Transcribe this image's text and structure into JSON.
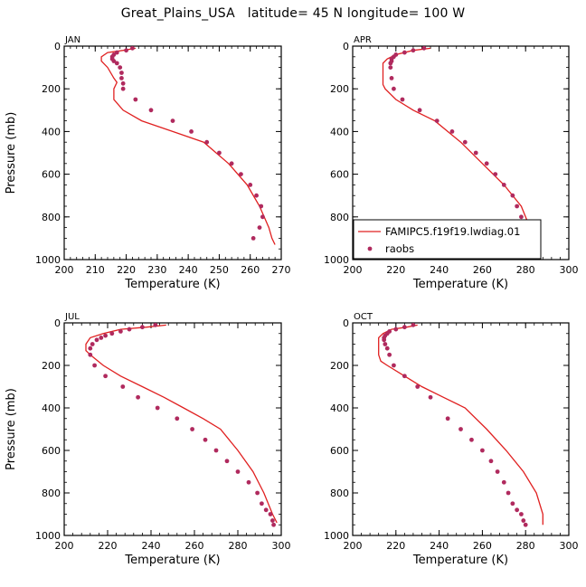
{
  "figure": {
    "title": "Great_Plains_USA   latitude= 45 N longitude= 100 W"
  },
  "colors": {
    "model": "#e02020",
    "obs": "#b02a5e",
    "axis": "#000000"
  },
  "chart_data": [
    {
      "type": "line",
      "panel": "JAN",
      "xlabel": "Temperature (K)",
      "ylabel": "Pressure (mb)",
      "xlim": [
        200,
        270
      ],
      "ylim": [
        1000,
        0
      ],
      "y_inverted": true,
      "xticks": [
        200,
        210,
        220,
        230,
        240,
        250,
        260,
        270
      ],
      "yticks": [
        0,
        200,
        400,
        600,
        800,
        1000
      ],
      "legend": null,
      "series": [
        {
          "name": "FAMIPC5.f19f19.lwdiag.01",
          "kind": "line",
          "x": [
            223,
            219,
            214,
            212,
            212,
            214,
            216,
            217,
            216,
            216,
            219,
            225,
            235,
            245,
            253,
            259,
            263,
            266,
            267,
            268
          ],
          "y": [
            10,
            20,
            30,
            50,
            70,
            100,
            150,
            170,
            200,
            250,
            300,
            350,
            400,
            450,
            550,
            650,
            750,
            850,
            900,
            930
          ]
        },
        {
          "name": "raobs",
          "kind": "points",
          "x": [
            222,
            220,
            217,
            216,
            215.5,
            215.5,
            216,
            217,
            218,
            218.5,
            218.5,
            219,
            219,
            223,
            228,
            235,
            241,
            246,
            250,
            254,
            257,
            260,
            262,
            263.5,
            264,
            263,
            261
          ],
          "y": [
            10,
            20,
            30,
            40,
            50,
            60,
            70,
            80,
            100,
            125,
            150,
            175,
            200,
            250,
            300,
            350,
            400,
            450,
            500,
            550,
            600,
            650,
            700,
            750,
            800,
            850,
            900
          ]
        }
      ]
    },
    {
      "type": "line",
      "panel": "APR",
      "xlabel": "Temperature (K)",
      "ylabel": "",
      "xlim": [
        200,
        300
      ],
      "ylim": [
        1000,
        0
      ],
      "y_inverted": true,
      "xticks": [
        200,
        220,
        240,
        260,
        280,
        300
      ],
      "yticks": [
        0,
        200,
        400,
        600,
        800,
        1000
      ],
      "legend": "bottom-right",
      "series": [
        {
          "name": "FAMIPC5.f19f19.lwdiag.01",
          "kind": "line",
          "x": [
            236,
            228,
            220,
            216,
            214,
            214,
            214,
            214,
            215,
            220,
            228,
            238,
            250,
            260,
            270,
            278,
            282,
            284
          ],
          "y": [
            10,
            20,
            40,
            60,
            80,
            100,
            150,
            180,
            200,
            250,
            300,
            350,
            450,
            550,
            650,
            750,
            850,
            930
          ]
        },
        {
          "name": "raobs",
          "kind": "points",
          "x": [
            233,
            228,
            224,
            220,
            219,
            218,
            218,
            217.5,
            217.5,
            218,
            219,
            223,
            231,
            239,
            246,
            252,
            257,
            262,
            266,
            270,
            274,
            276,
            278,
            279
          ],
          "y": [
            10,
            20,
            30,
            40,
            50,
            60,
            70,
            80,
            100,
            150,
            200,
            250,
            300,
            350,
            400,
            450,
            500,
            550,
            600,
            650,
            700,
            750,
            800,
            850
          ]
        }
      ]
    },
    {
      "type": "line",
      "panel": "JUL",
      "xlabel": "Temperature (K)",
      "ylabel": "Pressure (mb)",
      "xlim": [
        200,
        300
      ],
      "ylim": [
        1000,
        0
      ],
      "y_inverted": true,
      "xticks": [
        200,
        220,
        240,
        260,
        280,
        300
      ],
      "yticks": [
        0,
        200,
        400,
        600,
        800,
        1000
      ],
      "legend": null,
      "series": [
        {
          "name": "FAMIPC5.f19f19.lwdiag.01",
          "kind": "line",
          "x": [
            247,
            238,
            226,
            218,
            212,
            210,
            210,
            212,
            218,
            226,
            236,
            246,
            255,
            264,
            272,
            280,
            287,
            292,
            296,
            298
          ],
          "y": [
            10,
            20,
            30,
            50,
            70,
            100,
            130,
            150,
            200,
            250,
            300,
            350,
            400,
            450,
            500,
            600,
            700,
            800,
            900,
            940
          ]
        },
        {
          "name": "raobs",
          "kind": "points",
          "x": [
            242,
            236,
            230,
            226,
            222,
            219,
            217,
            215,
            213,
            212,
            212,
            214,
            219,
            227,
            234,
            243,
            252,
            259,
            265,
            270,
            275,
            280,
            285,
            289,
            291,
            293,
            295,
            296,
            296.5
          ],
          "y": [
            10,
            20,
            30,
            40,
            50,
            60,
            70,
            80,
            100,
            120,
            150,
            200,
            250,
            300,
            350,
            400,
            450,
            500,
            550,
            600,
            650,
            700,
            750,
            800,
            850,
            880,
            900,
            930,
            950
          ]
        }
      ]
    },
    {
      "type": "line",
      "panel": "OCT",
      "xlabel": "Temperature (K)",
      "ylabel": "",
      "xlim": [
        200,
        300
      ],
      "ylim": [
        1000,
        0
      ],
      "y_inverted": true,
      "xticks": [
        200,
        220,
        240,
        260,
        280,
        300
      ],
      "yticks": [
        0,
        200,
        400,
        600,
        800,
        1000
      ],
      "legend": null,
      "series": [
        {
          "name": "FAMIPC5.f19f19.lwdiag.01",
          "kind": "line",
          "x": [
            230,
            225,
            218,
            214,
            212,
            212,
            212,
            213,
            216,
            224,
            232,
            242,
            252,
            262,
            271,
            279,
            285,
            288,
            288
          ],
          "y": [
            10,
            20,
            30,
            50,
            70,
            100,
            150,
            180,
            200,
            250,
            300,
            350,
            400,
            500,
            600,
            700,
            800,
            900,
            950
          ]
        },
        {
          "name": "raobs",
          "kind": "points",
          "x": [
            228,
            224,
            220,
            217,
            216,
            215,
            214.5,
            214.5,
            215,
            216,
            217,
            219,
            224,
            230,
            236,
            244,
            250,
            255,
            260,
            264,
            267,
            270,
            272,
            274,
            276,
            278,
            279,
            280
          ],
          "y": [
            10,
            20,
            30,
            40,
            50,
            60,
            70,
            80,
            100,
            120,
            150,
            200,
            250,
            300,
            350,
            450,
            500,
            550,
            600,
            650,
            700,
            750,
            800,
            850,
            880,
            900,
            930,
            950
          ]
        }
      ]
    }
  ]
}
